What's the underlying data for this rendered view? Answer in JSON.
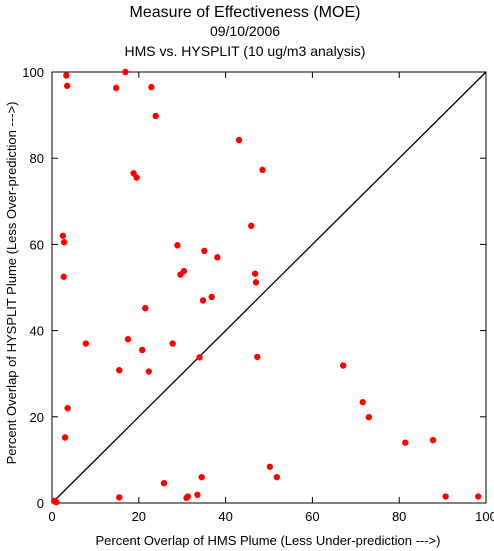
{
  "chart_data": {
    "type": "scatter",
    "title": "Measure of Effectiveness (MOE)",
    "subtitle_date": "09/10/2006",
    "subtitle_comparison": "HMS vs. HYSPLIT  (10 ug/m3 analysis)",
    "xlabel": "Percent Overlap of HMS Plume (Less Under-prediction --->)",
    "ylabel": "Percent Overlap of HYSPLIT Plume (Less Over-prediction --->)",
    "xlim": [
      0,
      100
    ],
    "ylim": [
      0,
      100
    ],
    "xticks": [
      0,
      20,
      40,
      60,
      80,
      100
    ],
    "yticks": [
      0,
      20,
      40,
      60,
      80,
      100
    ],
    "grid": false,
    "marker_color": "#ff0000",
    "reference_line": {
      "from": [
        0,
        0
      ],
      "to": [
        100,
        100
      ],
      "color": "#000000"
    },
    "series": [
      {
        "points": [
          [
            0.5,
            0.5
          ],
          [
            1.0,
            0.2
          ],
          [
            2.5,
            62.0
          ],
          [
            2.8,
            60.5
          ],
          [
            2.7,
            52.5
          ],
          [
            3.3,
            99.2
          ],
          [
            3.5,
            96.8
          ],
          [
            3.0,
            15.2
          ],
          [
            3.6,
            22.0
          ],
          [
            7.8,
            37.0
          ],
          [
            14.8,
            96.3
          ],
          [
            16.9,
            100.0
          ],
          [
            15.5,
            30.8
          ],
          [
            15.5,
            1.3
          ],
          [
            17.5,
            38.0
          ],
          [
            18.8,
            76.5
          ],
          [
            19.5,
            75.5
          ],
          [
            20.8,
            35.5
          ],
          [
            21.5,
            45.2
          ],
          [
            22.3,
            30.5
          ],
          [
            22.9,
            96.5
          ],
          [
            23.9,
            89.8
          ],
          [
            25.8,
            4.6
          ],
          [
            27.8,
            37.0
          ],
          [
            28.9,
            59.8
          ],
          [
            29.6,
            53.0
          ],
          [
            30.4,
            53.8
          ],
          [
            31.0,
            1.2
          ],
          [
            31.3,
            1.5
          ],
          [
            33.5,
            1.9
          ],
          [
            34.0,
            33.8
          ],
          [
            34.5,
            6.0
          ],
          [
            34.8,
            47.0
          ],
          [
            35.1,
            58.5
          ],
          [
            36.8,
            47.8
          ],
          [
            38.1,
            57.0
          ],
          [
            43.1,
            84.2
          ],
          [
            45.9,
            64.3
          ],
          [
            46.8,
            53.2
          ],
          [
            47.0,
            51.2
          ],
          [
            47.3,
            33.9
          ],
          [
            48.5,
            77.3
          ],
          [
            50.2,
            8.4
          ],
          [
            51.8,
            6.0
          ],
          [
            67.1,
            31.9
          ],
          [
            71.6,
            23.4
          ],
          [
            73.0,
            19.9
          ],
          [
            81.4,
            14.0
          ],
          [
            87.8,
            14.6
          ],
          [
            90.7,
            1.5
          ],
          [
            98.2,
            1.5
          ]
        ]
      }
    ]
  }
}
